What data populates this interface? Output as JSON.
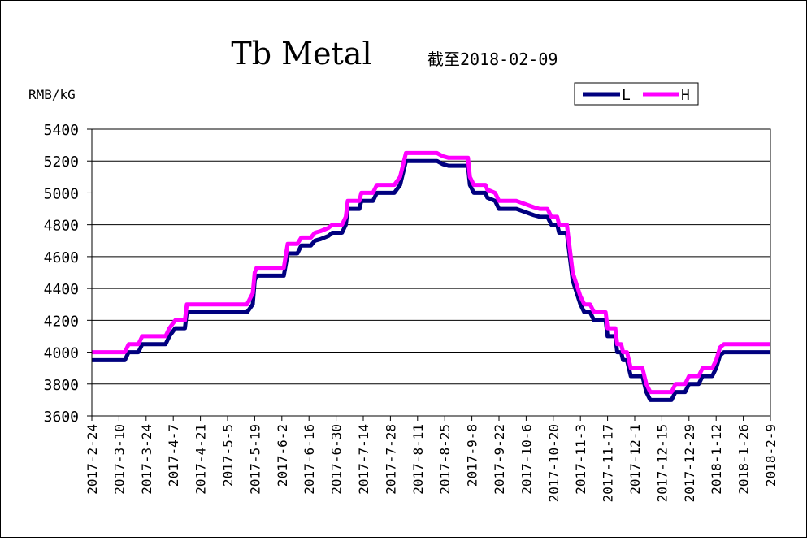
{
  "chart_data": {
    "type": "line",
    "title": "Tb Metal",
    "subtitle": "截至2018-02-09",
    "ylabel": "RMB/kG",
    "xlabel": "",
    "ylim": [
      3600,
      5400
    ],
    "yticks": [
      3600,
      3800,
      4000,
      4200,
      4400,
      4600,
      4800,
      5000,
      5200,
      5400
    ],
    "x_range": [
      "2017-2-24",
      "2018-2-9"
    ],
    "categories": [
      "2017-2-24",
      "2017-3-10",
      "2017-3-24",
      "2017-4-7",
      "2017-4-21",
      "2017-5-5",
      "2017-5-19",
      "2017-6-2",
      "2017-6-16",
      "2017-6-30",
      "2017-7-14",
      "2017-7-28",
      "2017-8-11",
      "2017-8-25",
      "2017-9-8",
      "2017-9-22",
      "2017-10-6",
      "2017-10-20",
      "2017-11-3",
      "2017-11-17",
      "2017-12-1",
      "2017-12-15",
      "2017-12-29",
      "2018-1-12",
      "2018-1-26",
      "2018-2-9"
    ],
    "grid": true,
    "legend_position": "top-right",
    "series": [
      {
        "name": "L",
        "color": "#00007F",
        "points": [
          [
            "2017-2-24",
            3950
          ],
          [
            "2017-3-10",
            3950
          ],
          [
            "2017-3-13",
            3950
          ],
          [
            "2017-3-15",
            4000
          ],
          [
            "2017-3-20",
            4000
          ],
          [
            "2017-3-22",
            4050
          ],
          [
            "2017-4-3",
            4050
          ],
          [
            "2017-4-5",
            4100
          ],
          [
            "2017-4-8",
            4150
          ],
          [
            "2017-4-13",
            4150
          ],
          [
            "2017-4-14",
            4250
          ],
          [
            "2017-4-21",
            4250
          ],
          [
            "2017-5-15",
            4250
          ],
          [
            "2017-5-18",
            4300
          ],
          [
            "2017-5-19",
            4450
          ],
          [
            "2017-5-20",
            4480
          ],
          [
            "2017-6-3",
            4480
          ],
          [
            "2017-6-5",
            4620
          ],
          [
            "2017-6-10",
            4620
          ],
          [
            "2017-6-12",
            4670
          ],
          [
            "2017-6-17",
            4670
          ],
          [
            "2017-6-19",
            4700
          ],
          [
            "2017-6-22",
            4710
          ],
          [
            "2017-6-26",
            4730
          ],
          [
            "2017-6-28",
            4750
          ],
          [
            "2017-7-3",
            4750
          ],
          [
            "2017-7-5",
            4800
          ],
          [
            "2017-7-6",
            4900
          ],
          [
            "2017-7-12",
            4900
          ],
          [
            "2017-7-13",
            4950
          ],
          [
            "2017-7-19",
            4950
          ],
          [
            "2017-7-21",
            5000
          ],
          [
            "2017-7-30",
            5000
          ],
          [
            "2017-8-2",
            5050
          ],
          [
            "2017-8-4",
            5150
          ],
          [
            "2017-8-5",
            5200
          ],
          [
            "2017-8-21",
            5200
          ],
          [
            "2017-8-24",
            5180
          ],
          [
            "2017-8-27",
            5170
          ],
          [
            "2017-9-6",
            5170
          ],
          [
            "2017-9-7",
            5050
          ],
          [
            "2017-9-9",
            5000
          ],
          [
            "2017-9-15",
            5000
          ],
          [
            "2017-9-16",
            4970
          ],
          [
            "2017-9-20",
            4950
          ],
          [
            "2017-9-22",
            4900
          ],
          [
            "2017-10-1",
            4900
          ],
          [
            "2017-10-10",
            4860
          ],
          [
            "2017-10-13",
            4850
          ],
          [
            "2017-10-17",
            4850
          ],
          [
            "2017-10-19",
            4800
          ],
          [
            "2017-10-22",
            4800
          ],
          [
            "2017-10-23",
            4750
          ],
          [
            "2017-10-27",
            4750
          ],
          [
            "2017-10-30",
            4450
          ],
          [
            "2017-11-3",
            4300
          ],
          [
            "2017-11-5",
            4250
          ],
          [
            "2017-11-8",
            4250
          ],
          [
            "2017-11-10",
            4200
          ],
          [
            "2017-11-16",
            4200
          ],
          [
            "2017-11-17",
            4100
          ],
          [
            "2017-11-21",
            4100
          ],
          [
            "2017-11-22",
            4000
          ],
          [
            "2017-11-24",
            4000
          ],
          [
            "2017-11-25",
            3950
          ],
          [
            "2017-11-27",
            3950
          ],
          [
            "2017-11-29",
            3850
          ],
          [
            "2017-12-5",
            3850
          ],
          [
            "2017-12-7",
            3750
          ],
          [
            "2017-12-9",
            3700
          ],
          [
            "2017-12-20",
            3700
          ],
          [
            "2017-12-22",
            3750
          ],
          [
            "2017-12-27",
            3750
          ],
          [
            "2017-12-29",
            3800
          ],
          [
            "2018-1-3",
            3800
          ],
          [
            "2018-1-5",
            3850
          ],
          [
            "2018-1-10",
            3850
          ],
          [
            "2018-1-12",
            3900
          ],
          [
            "2018-1-14",
            3980
          ],
          [
            "2018-1-16",
            4000
          ],
          [
            "2018-2-9",
            4000
          ]
        ]
      },
      {
        "name": "H",
        "color": "#FF00FF",
        "points": [
          [
            "2017-2-24",
            4000
          ],
          [
            "2017-3-13",
            4000
          ],
          [
            "2017-3-15",
            4050
          ],
          [
            "2017-3-20",
            4050
          ],
          [
            "2017-3-22",
            4100
          ],
          [
            "2017-4-3",
            4100
          ],
          [
            "2017-4-5",
            4150
          ],
          [
            "2017-4-8",
            4200
          ],
          [
            "2017-4-13",
            4200
          ],
          [
            "2017-4-14",
            4300
          ],
          [
            "2017-5-15",
            4300
          ],
          [
            "2017-5-18",
            4370
          ],
          [
            "2017-5-19",
            4500
          ],
          [
            "2017-5-20",
            4530
          ],
          [
            "2017-6-3",
            4530
          ],
          [
            "2017-6-5",
            4680
          ],
          [
            "2017-6-10",
            4680
          ],
          [
            "2017-6-12",
            4720
          ],
          [
            "2017-6-17",
            4720
          ],
          [
            "2017-6-19",
            4750
          ],
          [
            "2017-6-22",
            4760
          ],
          [
            "2017-6-26",
            4780
          ],
          [
            "2017-6-28",
            4800
          ],
          [
            "2017-7-3",
            4800
          ],
          [
            "2017-7-5",
            4850
          ],
          [
            "2017-7-6",
            4950
          ],
          [
            "2017-7-12",
            4950
          ],
          [
            "2017-7-13",
            5000
          ],
          [
            "2017-7-19",
            5000
          ],
          [
            "2017-7-21",
            5050
          ],
          [
            "2017-7-30",
            5050
          ],
          [
            "2017-8-2",
            5100
          ],
          [
            "2017-8-4",
            5200
          ],
          [
            "2017-8-5",
            5250
          ],
          [
            "2017-8-21",
            5250
          ],
          [
            "2017-8-24",
            5230
          ],
          [
            "2017-8-27",
            5220
          ],
          [
            "2017-9-6",
            5220
          ],
          [
            "2017-9-7",
            5100
          ],
          [
            "2017-9-9",
            5050
          ],
          [
            "2017-9-15",
            5050
          ],
          [
            "2017-9-16",
            5020
          ],
          [
            "2017-9-20",
            5000
          ],
          [
            "2017-9-22",
            4950
          ],
          [
            "2017-10-1",
            4950
          ],
          [
            "2017-10-10",
            4910
          ],
          [
            "2017-10-13",
            4900
          ],
          [
            "2017-10-17",
            4900
          ],
          [
            "2017-10-19",
            4850
          ],
          [
            "2017-10-22",
            4850
          ],
          [
            "2017-10-23",
            4800
          ],
          [
            "2017-10-27",
            4800
          ],
          [
            "2017-10-30",
            4500
          ],
          [
            "2017-11-3",
            4350
          ],
          [
            "2017-11-5",
            4300
          ],
          [
            "2017-11-8",
            4300
          ],
          [
            "2017-11-10",
            4250
          ],
          [
            "2017-11-16",
            4250
          ],
          [
            "2017-11-17",
            4150
          ],
          [
            "2017-11-21",
            4150
          ],
          [
            "2017-11-22",
            4050
          ],
          [
            "2017-11-24",
            4050
          ],
          [
            "2017-11-25",
            4000
          ],
          [
            "2017-11-27",
            4000
          ],
          [
            "2017-11-29",
            3900
          ],
          [
            "2017-12-5",
            3900
          ],
          [
            "2017-12-7",
            3800
          ],
          [
            "2017-12-9",
            3750
          ],
          [
            "2017-12-20",
            3750
          ],
          [
            "2017-12-22",
            3800
          ],
          [
            "2017-12-27",
            3800
          ],
          [
            "2017-12-29",
            3850
          ],
          [
            "2018-1-3",
            3850
          ],
          [
            "2018-1-5",
            3900
          ],
          [
            "2018-1-10",
            3900
          ],
          [
            "2018-1-12",
            3950
          ],
          [
            "2018-1-14",
            4030
          ],
          [
            "2018-1-16",
            4050
          ],
          [
            "2018-2-9",
            4050
          ]
        ]
      }
    ]
  }
}
